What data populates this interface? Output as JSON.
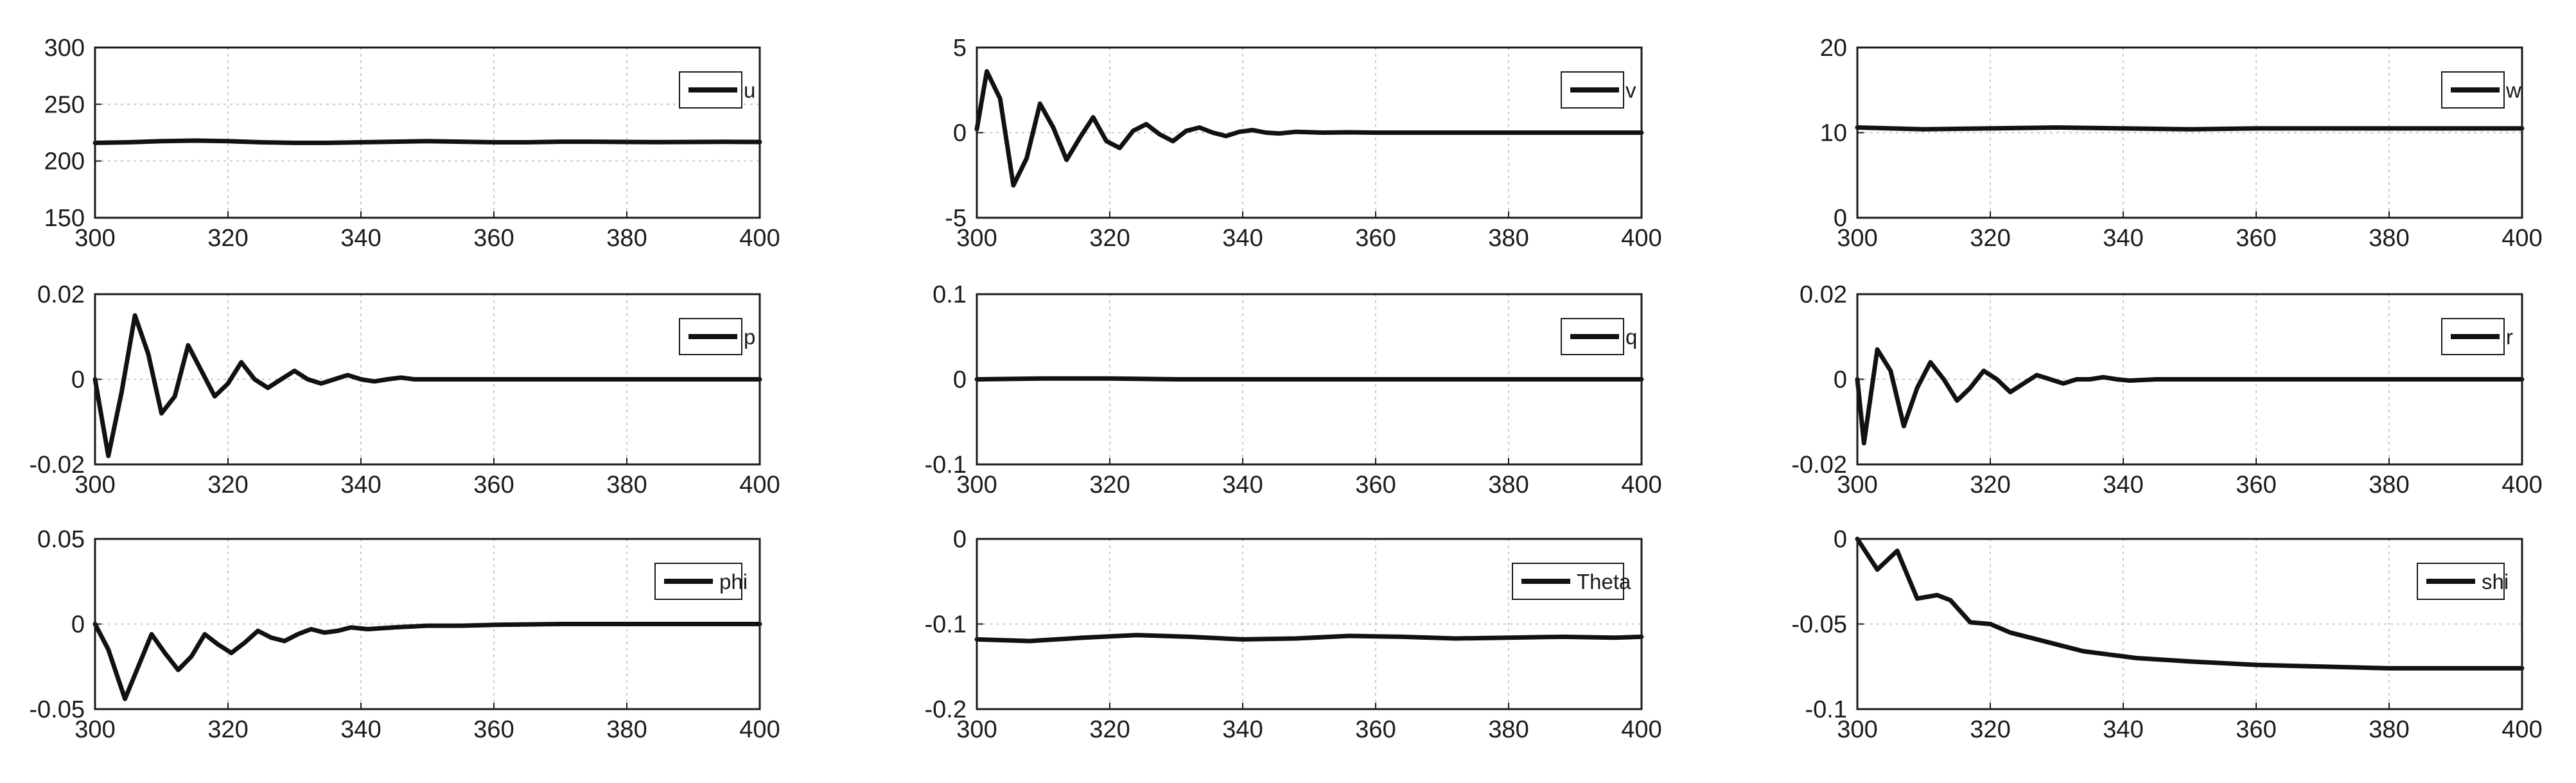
{
  "colors": {
    "line": "#111111",
    "grid": "#c8c8c8",
    "axes": "#1a1a1a",
    "background": "#ffffff"
  },
  "chart_data": [
    {
      "type": "line",
      "legend": "u",
      "legend_position": "top-right",
      "grid": true,
      "xlim": [
        300,
        400
      ],
      "ylim": [
        150,
        300
      ],
      "xticks": [
        300,
        320,
        340,
        360,
        380,
        400
      ],
      "yticks": [
        150,
        200,
        250,
        300
      ],
      "xticklabels": [
        "300",
        "320",
        "340",
        "360",
        "380",
        "400"
      ],
      "yticklabels": [
        "150",
        "200",
        "250",
        "300"
      ],
      "series": [
        {
          "x": [
            300,
            305,
            310,
            315,
            320,
            325,
            330,
            335,
            340,
            345,
            350,
            355,
            360,
            365,
            370,
            375,
            380,
            385,
            390,
            395,
            400
          ],
          "y": [
            216,
            216.5,
            217.5,
            218,
            217.5,
            216.5,
            216,
            216,
            216.5,
            217,
            217.5,
            217,
            216.5,
            216.5,
            217,
            217,
            216.8,
            216.6,
            216.8,
            216.9,
            216.8
          ]
        }
      ]
    },
    {
      "type": "line",
      "legend": "v",
      "legend_position": "top-right",
      "grid": true,
      "xlim": [
        300,
        400
      ],
      "ylim": [
        -5,
        5
      ],
      "xticks": [
        300,
        320,
        340,
        360,
        380,
        400
      ],
      "yticks": [
        -5,
        0,
        5
      ],
      "xticklabels": [
        "300",
        "320",
        "340",
        "360",
        "380",
        "400"
      ],
      "yticklabels": [
        "-5",
        "0",
        "5"
      ],
      "series": [
        {
          "x": [
            300,
            301.5,
            303.5,
            305.5,
            307.5,
            309.5,
            311.5,
            313.5,
            315.5,
            317.5,
            319.5,
            321.5,
            323.5,
            325.5,
            327.5,
            329.5,
            331.5,
            333.5,
            335.5,
            337.5,
            339.5,
            341.5,
            343.5,
            345.5,
            348,
            352,
            356,
            360,
            370,
            380,
            390,
            400
          ],
          "y": [
            0.2,
            3.6,
            2.0,
            -3.1,
            -1.5,
            1.7,
            0.3,
            -1.6,
            -0.3,
            0.9,
            -0.5,
            -0.9,
            0.1,
            0.5,
            -0.1,
            -0.5,
            0.1,
            0.3,
            0.0,
            -0.2,
            0.05,
            0.15,
            0.0,
            -0.05,
            0.05,
            0.0,
            0.02,
            0.0,
            0.0,
            0.0,
            0.0,
            0.0
          ]
        }
      ]
    },
    {
      "type": "line",
      "legend": "w",
      "legend_position": "top-right",
      "grid": true,
      "xlim": [
        300,
        400
      ],
      "ylim": [
        0,
        20
      ],
      "xticks": [
        300,
        320,
        340,
        360,
        380,
        400
      ],
      "yticks": [
        0,
        10,
        20
      ],
      "xticklabels": [
        "300",
        "320",
        "340",
        "360",
        "380",
        "400"
      ],
      "yticklabels": [
        "0",
        "10",
        "20"
      ],
      "series": [
        {
          "x": [
            300,
            310,
            320,
            330,
            340,
            350,
            360,
            370,
            380,
            390,
            400
          ],
          "y": [
            10.6,
            10.4,
            10.5,
            10.6,
            10.5,
            10.4,
            10.5,
            10.5,
            10.5,
            10.5,
            10.5
          ]
        }
      ]
    },
    {
      "type": "line",
      "legend": "p",
      "legend_position": "top-right",
      "grid": true,
      "xlim": [
        300,
        400
      ],
      "ylim": [
        -0.02,
        0.02
      ],
      "xticks": [
        300,
        320,
        340,
        360,
        380,
        400
      ],
      "yticks": [
        -0.02,
        0,
        0.02
      ],
      "xticklabels": [
        "300",
        "320",
        "340",
        "360",
        "380",
        "400"
      ],
      "yticklabels": [
        "-0.02",
        "0",
        "0.02"
      ],
      "series": [
        {
          "x": [
            300,
            302,
            304,
            306,
            308,
            310,
            312,
            314,
            316,
            318,
            320,
            322,
            324,
            326,
            328,
            330,
            332,
            334,
            336,
            338,
            340,
            342,
            344,
            346,
            348,
            350,
            355,
            360,
            370,
            380,
            390,
            400
          ],
          "y": [
            0.0,
            -0.018,
            -0.003,
            0.015,
            0.006,
            -0.008,
            -0.004,
            0.008,
            0.002,
            -0.004,
            -0.001,
            0.004,
            0.0,
            -0.002,
            0.0,
            0.002,
            0.0,
            -0.001,
            0.0,
            0.001,
            0.0,
            -0.0005,
            0.0,
            0.0004,
            0.0,
            0.0,
            0.0,
            0.0,
            0.0,
            0.0,
            0.0,
            0.0
          ]
        }
      ]
    },
    {
      "type": "line",
      "legend": "q",
      "legend_position": "top-right",
      "grid": true,
      "xlim": [
        300,
        400
      ],
      "ylim": [
        -0.1,
        0.1
      ],
      "xticks": [
        300,
        320,
        340,
        360,
        380,
        400
      ],
      "yticks": [
        -0.1,
        0,
        0.1
      ],
      "xticklabels": [
        "300",
        "320",
        "340",
        "360",
        "380",
        "400"
      ],
      "yticklabels": [
        "-0.1",
        "0",
        "0.1"
      ],
      "series": [
        {
          "x": [
            300,
            310,
            320,
            330,
            340,
            350,
            360,
            370,
            380,
            390,
            400
          ],
          "y": [
            0.0,
            0.001,
            0.001,
            0.0,
            0.0,
            0.0,
            0.0,
            0.0,
            0.0,
            0.0,
            0.0
          ]
        }
      ]
    },
    {
      "type": "line",
      "legend": "r",
      "legend_position": "top-right",
      "grid": true,
      "xlim": [
        300,
        400
      ],
      "ylim": [
        -0.02,
        0.02
      ],
      "xticks": [
        300,
        320,
        340,
        360,
        380,
        400
      ],
      "yticks": [
        -0.02,
        0,
        0.02
      ],
      "xticklabels": [
        "300",
        "320",
        "340",
        "360",
        "380",
        "400"
      ],
      "yticklabels": [
        "-0.02",
        "0",
        "0.02"
      ],
      "series": [
        {
          "x": [
            300,
            301,
            303,
            305,
            307,
            309,
            311,
            313,
            315,
            317,
            319,
            321,
            323,
            325,
            327,
            329,
            331,
            333,
            335,
            337,
            339,
            341,
            345,
            350,
            355,
            360,
            370,
            380,
            390,
            400
          ],
          "y": [
            0.0,
            -0.015,
            0.007,
            0.002,
            -0.011,
            -0.002,
            0.004,
            0.0,
            -0.005,
            -0.002,
            0.002,
            0.0,
            -0.003,
            -0.001,
            0.001,
            0.0,
            -0.001,
            0.0,
            0.0,
            0.0005,
            0.0,
            -0.0003,
            0.0,
            0.0,
            0.0,
            0.0,
            0.0,
            0.0,
            0.0,
            0.0
          ]
        }
      ]
    },
    {
      "type": "line",
      "legend": "phi",
      "legend_position": "top-right",
      "grid": true,
      "xlim": [
        300,
        400
      ],
      "ylim": [
        -0.05,
        0.05
      ],
      "xticks": [
        300,
        320,
        340,
        360,
        380,
        400
      ],
      "yticks": [
        -0.05,
        0,
        0.05
      ],
      "xticklabels": [
        "300",
        "320",
        "340",
        "360",
        "380",
        "400"
      ],
      "yticklabels": [
        "-0.05",
        "0",
        "0.05"
      ],
      "series": [
        {
          "x": [
            300,
            302,
            304.5,
            306.5,
            308.5,
            310.5,
            312.5,
            314.5,
            316.5,
            318.5,
            320.5,
            322.5,
            324.5,
            326.5,
            328.5,
            330.5,
            332.5,
            334.5,
            336.5,
            338.5,
            341,
            345,
            350,
            355,
            360,
            370,
            380,
            390,
            400
          ],
          "y": [
            0.0,
            -0.015,
            -0.044,
            -0.025,
            -0.006,
            -0.017,
            -0.027,
            -0.019,
            -0.006,
            -0.012,
            -0.017,
            -0.011,
            -0.004,
            -0.008,
            -0.01,
            -0.006,
            -0.003,
            -0.005,
            -0.004,
            -0.002,
            -0.003,
            -0.002,
            -0.001,
            -0.001,
            -0.0005,
            0.0,
            0.0,
            0.0,
            0.0
          ]
        }
      ]
    },
    {
      "type": "line",
      "legend": "Theta",
      "legend_position": "top-right",
      "grid": true,
      "xlim": [
        300,
        400
      ],
      "ylim": [
        -0.2,
        0
      ],
      "xticks": [
        300,
        320,
        340,
        360,
        380,
        400
      ],
      "yticks": [
        -0.2,
        -0.1,
        0
      ],
      "xticklabels": [
        "300",
        "320",
        "340",
        "360",
        "380",
        "400"
      ],
      "yticklabels": [
        "-0.2",
        "-0.1",
        "0"
      ],
      "series": [
        {
          "x": [
            300,
            308,
            316,
            324,
            332,
            340,
            348,
            356,
            364,
            372,
            380,
            388,
            396,
            400
          ],
          "y": [
            -0.118,
            -0.12,
            -0.116,
            -0.113,
            -0.115,
            -0.118,
            -0.117,
            -0.114,
            -0.115,
            -0.117,
            -0.116,
            -0.115,
            -0.116,
            -0.115
          ]
        }
      ]
    },
    {
      "type": "line",
      "legend": "shi",
      "legend_position": "top-right",
      "grid": true,
      "xlim": [
        300,
        400
      ],
      "ylim": [
        -0.1,
        0
      ],
      "xticks": [
        300,
        320,
        340,
        360,
        380,
        400
      ],
      "yticks": [
        -0.1,
        -0.05,
        0
      ],
      "xticklabels": [
        "300",
        "320",
        "340",
        "360",
        "380",
        "400"
      ],
      "yticklabels": [
        "-0.1",
        "-0.05",
        "0"
      ],
      "series": [
        {
          "x": [
            300,
            303,
            306,
            309,
            312,
            314,
            317,
            320,
            323,
            326,
            330,
            334,
            338,
            342,
            350,
            360,
            370,
            380,
            390,
            400
          ],
          "y": [
            0.0,
            -0.018,
            -0.007,
            -0.035,
            -0.033,
            -0.036,
            -0.049,
            -0.05,
            -0.055,
            -0.058,
            -0.062,
            -0.066,
            -0.068,
            -0.07,
            -0.072,
            -0.074,
            -0.075,
            -0.076,
            -0.076,
            -0.076
          ]
        }
      ]
    }
  ]
}
